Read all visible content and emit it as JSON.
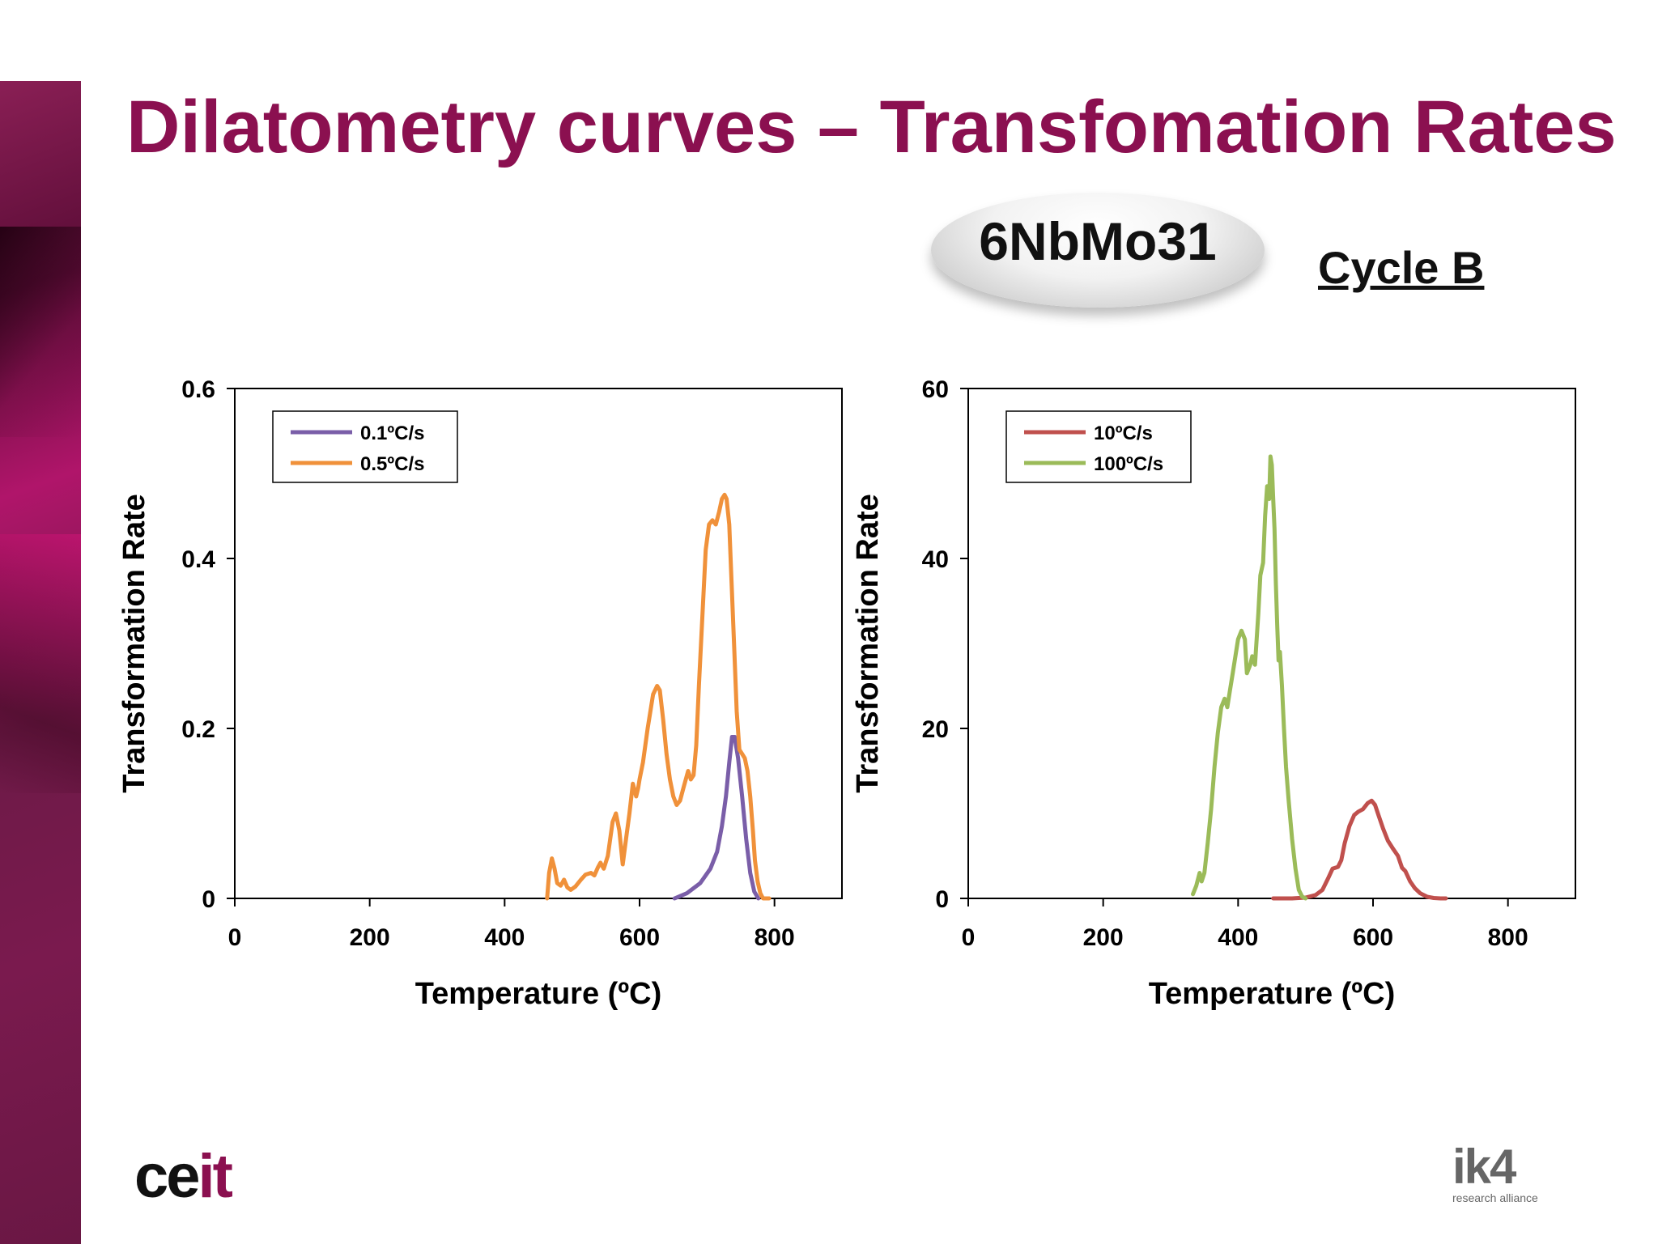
{
  "slide": {
    "title": "Dilatometry curves – Transfomation Rates",
    "sample": "6NbMo31",
    "cycle": "Cycle B",
    "accent_color": "#8b1050"
  },
  "logos": {
    "ceit": {
      "part1": "ce",
      "part2": "it"
    },
    "ik4": {
      "main": "ik4",
      "sub": "research alliance"
    }
  },
  "chart_data": [
    {
      "type": "line",
      "xlabel": "Temperature (ºC)",
      "ylabel": "Transformation  Rate",
      "xlim": [
        0,
        900
      ],
      "ylim": [
        0,
        0.6
      ],
      "xticks": [
        0,
        200,
        400,
        600,
        800
      ],
      "yticks": [
        0,
        0.2,
        0.4,
        0.6
      ],
      "ytick_labels": [
        "0",
        "0.2",
        "0.4",
        "0.6"
      ],
      "grid": false,
      "legend_position": "top-left",
      "series": [
        {
          "name": "0.1ºC/s",
          "color": "#7a5ea8",
          "x": [
            652,
            670,
            690,
            705,
            715,
            722,
            728,
            733,
            737,
            741,
            746,
            752,
            758,
            764,
            770,
            776
          ],
          "y": [
            0,
            0.006,
            0.018,
            0.035,
            0.055,
            0.085,
            0.12,
            0.16,
            0.19,
            0.19,
            0.165,
            0.12,
            0.07,
            0.03,
            0.008,
            0
          ]
        },
        {
          "name": "0.5ºC/s",
          "color": "#f0913a",
          "x": [
            463,
            466,
            470,
            474,
            478,
            483,
            488,
            493,
            498,
            505,
            513,
            520,
            528,
            533,
            538,
            542,
            547,
            553,
            560,
            565,
            570,
            575,
            580,
            585,
            590,
            595,
            598,
            600,
            605,
            612,
            620,
            626,
            630,
            635,
            640,
            645,
            650,
            655,
            660,
            665,
            672,
            676,
            680,
            684,
            688,
            693,
            698,
            703,
            708,
            713,
            718,
            722,
            726,
            729,
            733,
            736,
            740,
            744,
            748,
            752,
            756,
            760,
            764,
            768,
            771,
            775,
            779,
            783,
            786,
            789,
            792
          ],
          "y": [
            0,
            0.03,
            0.047,
            0.035,
            0.018,
            0.015,
            0.022,
            0.013,
            0.01,
            0.014,
            0.022,
            0.028,
            0.03,
            0.027,
            0.036,
            0.042,
            0.035,
            0.05,
            0.09,
            0.1,
            0.08,
            0.04,
            0.07,
            0.1,
            0.135,
            0.12,
            0.13,
            0.14,
            0.16,
            0.2,
            0.24,
            0.25,
            0.245,
            0.21,
            0.17,
            0.14,
            0.12,
            0.11,
            0.115,
            0.13,
            0.15,
            0.14,
            0.145,
            0.18,
            0.25,
            0.33,
            0.41,
            0.44,
            0.445,
            0.44,
            0.455,
            0.47,
            0.475,
            0.47,
            0.44,
            0.38,
            0.3,
            0.22,
            0.175,
            0.17,
            0.165,
            0.15,
            0.12,
            0.08,
            0.045,
            0.02,
            0.006,
            0,
            0,
            0,
            0
          ]
        }
      ]
    },
    {
      "type": "line",
      "xlabel": "Temperature (ºC)",
      "ylabel": "Transformation  Rate",
      "xlim": [
        0,
        900
      ],
      "ylim": [
        0,
        60
      ],
      "xticks": [
        0,
        200,
        400,
        600,
        800
      ],
      "yticks": [
        0,
        20,
        40,
        60
      ],
      "ytick_labels": [
        "0",
        "20",
        "40",
        "60"
      ],
      "grid": false,
      "legend_position": "top-left",
      "series": [
        {
          "name": "10ºC/s",
          "color": "#c0504d",
          "x": [
            452,
            480,
            500,
            515,
            525,
            533,
            540,
            548,
            553,
            558,
            565,
            572,
            578,
            585,
            592,
            598,
            603,
            608,
            615,
            622,
            630,
            637,
            643,
            648,
            655,
            662,
            670,
            680,
            690,
            700,
            708
          ],
          "y": [
            0,
            0,
            0.1,
            0.4,
            1.0,
            2.3,
            3.5,
            3.7,
            4.5,
            6.5,
            8.5,
            9.8,
            10.2,
            10.5,
            11.2,
            11.5,
            11.0,
            9.8,
            8.2,
            6.8,
            5.8,
            5.0,
            3.6,
            3.2,
            2.0,
            1.2,
            0.6,
            0.2,
            0.05,
            0,
            0
          ]
        },
        {
          "name": "100ºC/s",
          "color": "#9bbb59",
          "x": [
            333,
            338,
            343,
            346,
            350,
            355,
            360,
            365,
            370,
            375,
            380,
            384,
            388,
            392,
            396,
            400,
            405,
            410,
            413,
            418,
            421,
            425,
            430,
            433,
            437,
            440,
            443,
            446,
            448,
            450,
            452,
            454,
            456,
            458,
            460,
            462,
            465,
            468,
            471,
            475,
            480,
            485,
            490,
            495,
            500
          ],
          "y": [
            0.5,
            1.5,
            3.0,
            2.0,
            3.0,
            6.5,
            10.5,
            15.5,
            19.5,
            22.5,
            23.5,
            22.5,
            24.5,
            26.5,
            28.5,
            30.5,
            31.5,
            30.5,
            26.5,
            27.5,
            28.5,
            27.5,
            33.5,
            38.0,
            39.5,
            45.0,
            48.5,
            47.0,
            52.0,
            51.0,
            47.0,
            43.5,
            37.0,
            32.0,
            28.0,
            29.0,
            25.0,
            20.0,
            15.5,
            11.5,
            7.0,
            3.5,
            1.0,
            0.2,
            0
          ]
        }
      ]
    }
  ]
}
